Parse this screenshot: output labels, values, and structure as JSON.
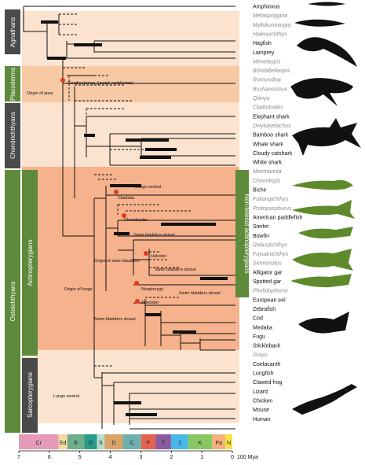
{
  "taxa": [
    {
      "name": "Amphioxus",
      "extinct": false
    },
    {
      "name": "Metaspriggina",
      "extinct": true
    },
    {
      "name": "Myllokunmingia",
      "extinct": true
    },
    {
      "name": "Haikouichthys",
      "extinct": true
    },
    {
      "name": "Hagfish",
      "extinct": false
    },
    {
      "name": "Lamprey",
      "extinct": false
    },
    {
      "name": "Mimetaspis",
      "extinct": true
    },
    {
      "name": "Brindabellaspis",
      "extinct": true
    },
    {
      "name": "Romundina",
      "extinct": true
    },
    {
      "name": "Buchanosteus",
      "extinct": true
    },
    {
      "name": "Qilinyu",
      "extinct": true
    },
    {
      "name": "Cladodoides",
      "extinct": true
    },
    {
      "name": "Elephant shark",
      "extinct": false
    },
    {
      "name": "Dwykaselachus",
      "extinct": true
    },
    {
      "name": "Bamboo shark",
      "extinct": false
    },
    {
      "name": "Whale shark",
      "extinct": false
    },
    {
      "name": "Cloudy catshark",
      "extinct": false
    },
    {
      "name": "White shark",
      "extinct": false
    },
    {
      "name": "Meemannia",
      "extinct": true
    },
    {
      "name": "Cheirolepis",
      "extinct": true
    },
    {
      "name": "Bichir",
      "extinct": false
    },
    {
      "name": "Fukangichthys",
      "extinct": true
    },
    {
      "name": "Protopsephurus",
      "extinct": true
    },
    {
      "name": "American paddlefish",
      "extinct": false
    },
    {
      "name": "Sterlet",
      "extinct": false
    },
    {
      "name": "Bowfin",
      "extinct": false
    },
    {
      "name": "Robustichthys",
      "extinct": true
    },
    {
      "name": "Fuyuanichthys",
      "extinct": true
    },
    {
      "name": "Semionotus",
      "extinct": true
    },
    {
      "name": "Alligator gar",
      "extinct": false
    },
    {
      "name": "Spotted gar",
      "extinct": false
    },
    {
      "name": "Pholidophorus",
      "extinct": true
    },
    {
      "name": "European eel",
      "extinct": false
    },
    {
      "name": "Zebrafish",
      "extinct": false
    },
    {
      "name": "Cod",
      "extinct": false
    },
    {
      "name": "Medaka",
      "extinct": false
    },
    {
      "name": "Fugu",
      "extinct": false
    },
    {
      "name": "Stickleback",
      "extinct": false
    },
    {
      "name": "Guiyu",
      "extinct": true
    },
    {
      "name": "Coelacanth",
      "extinct": false
    },
    {
      "name": "Lungfish",
      "extinct": false
    },
    {
      "name": "Clawed frog",
      "extinct": false
    },
    {
      "name": "Lizard",
      "extinct": false
    },
    {
      "name": "Chicken",
      "extinct": false
    },
    {
      "name": "Mouse",
      "extinct": false
    },
    {
      "name": "Human",
      "extinct": false
    }
  ],
  "groups": [
    {
      "name": "Agnathans",
      "color": "#4a4a4a",
      "shade": "#fbe3cf"
    },
    {
      "name": "Placoderms",
      "color": "#5e8a3c",
      "shade": "#f8c9a5"
    },
    {
      "name": "Chondrichthyans",
      "color": "#4a4a4a",
      "shade": "#fbe3cf"
    },
    {
      "name": "Actinopterygians",
      "color": "#5e8a3c",
      "shade": "#f6b28c"
    },
    {
      "name": "Osteichthyans",
      "color": "#5e8a3c",
      "shade": "#f6b28c"
    },
    {
      "name": "Sarcopterygians",
      "color": "#4a4a4a",
      "shade": "#fbe3cf"
    },
    {
      "name": "Non-teleost actinopterygians",
      "color": "#5e8a3c"
    }
  ],
  "annotations": [
    {
      "text": "Gnathostomes (jawed vertebrates)"
    },
    {
      "text": "Origin of jaws"
    },
    {
      "text": "Lungs ventral"
    },
    {
      "text": "Cladistia"
    },
    {
      "text": "Chondrostei"
    },
    {
      "text": "Swim bladders dorsal"
    },
    {
      "text": "Origin of swim bladders"
    },
    {
      "text": "Holostei"
    },
    {
      "text": "Swim bladders dorsal"
    },
    {
      "text": "Neopterygii"
    },
    {
      "text": "Origin of lungs"
    },
    {
      "text": "Teleostei"
    },
    {
      "text": "Swim bladders dorsal"
    },
    {
      "text": "Swim bladders dorsal"
    },
    {
      "text": "Lungs ventral"
    }
  ],
  "timescale": {
    "periods": [
      {
        "abbr": "Cr",
        "color": "#e59ab8"
      },
      {
        "abbr": "Ed",
        "color": "#f4dca0"
      },
      {
        "abbr": "E",
        "color": "#6fae8a"
      },
      {
        "abbr": "O",
        "color": "#2a9a8a"
      },
      {
        "abbr": "S",
        "color": "#b6ddc9"
      },
      {
        "abbr": "D",
        "color": "#d9a468"
      },
      {
        "abbr": "C",
        "color": "#6fb0ae"
      },
      {
        "abbr": "P",
        "color": "#e5624f"
      },
      {
        "abbr": "T",
        "color": "#8a5a9e"
      },
      {
        "abbr": "J",
        "color": "#48b8e8"
      },
      {
        "abbr": "K",
        "color": "#88c664"
      },
      {
        "abbr": "Pa",
        "color": "#f7b07a"
      },
      {
        "abbr": "N",
        "color": "#f8e04a"
      }
    ],
    "ticks": [
      "7",
      "6",
      "5",
      "4",
      "3",
      "2",
      "1",
      "0"
    ],
    "unit_label": "100 Mya"
  },
  "colors": {
    "node_marker": "#e23a1c",
    "branch": "#111111",
    "silhouette_dark": "#111111",
    "silhouette_green": "#5e8a2c"
  }
}
